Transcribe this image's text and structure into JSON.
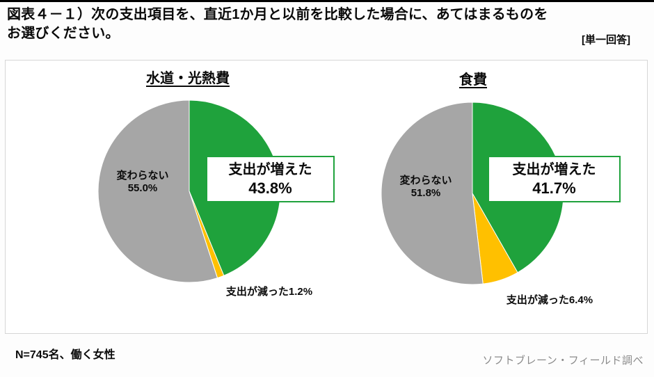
{
  "header": {
    "title_line1": "図表４－１）次の支出項目を、直近1か月と以前を比較した場合に、あてはまるものを",
    "title_line2": "お選びください。",
    "answer_type": "[単一回答]"
  },
  "colors": {
    "increase": "#1fa23c",
    "decrease": "#ffc000",
    "no_change": "#a6a6a6"
  },
  "chart_data": [
    {
      "type": "pie",
      "title": "水道・光熱費",
      "slices": [
        {
          "label": "支出が増えた",
          "value": 43.8,
          "color_key": "increase"
        },
        {
          "label": "支出が減った",
          "value": 1.2,
          "color_key": "decrease"
        },
        {
          "label": "変わらない",
          "value": 55.0,
          "color_key": "no_change"
        }
      ],
      "callout": {
        "label": "支出が増えた",
        "value_text": "43.8%"
      },
      "inner_label": {
        "label": "変わらない",
        "value_text": "55.0%"
      },
      "bottom_label": "支出が減った1.2%",
      "start_angle_deg": -90,
      "direction": "clockwise",
      "legend_position": "none"
    },
    {
      "type": "pie",
      "title": "食費",
      "slices": [
        {
          "label": "支出が増えた",
          "value": 41.7,
          "color_key": "increase"
        },
        {
          "label": "支出が減った",
          "value": 6.4,
          "color_key": "decrease"
        },
        {
          "label": "変わらない",
          "value": 51.8,
          "color_key": "no_change"
        }
      ],
      "callout": {
        "label": "支出が増えた",
        "value_text": "41.7%"
      },
      "inner_label": {
        "label": "変わらない",
        "value_text": "51.8%"
      },
      "bottom_label": "支出が減った6.4%",
      "start_angle_deg": -90,
      "direction": "clockwise",
      "legend_position": "none"
    }
  ],
  "footer": {
    "sample_note": "N=745名、働く女性",
    "source": "ソフトブレーン・フィールド調べ"
  }
}
